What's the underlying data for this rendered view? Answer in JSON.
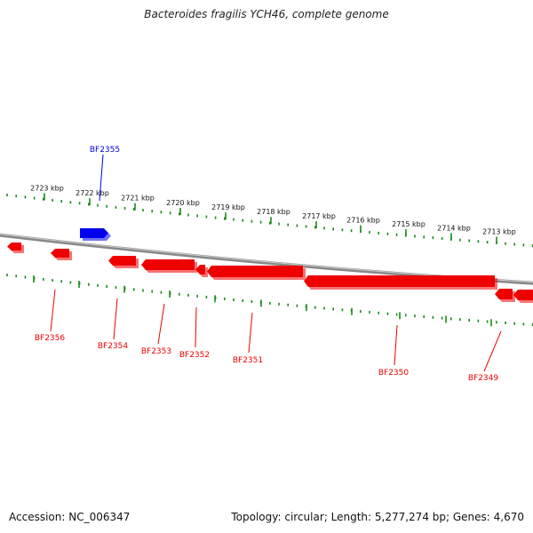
{
  "title": "Bacteroides fragilis YCH46, complete genome",
  "accession": "Accession: NC_006347",
  "summary": "Topology: circular; Length: 5,277,274 bp; Genes: 4,670",
  "colors": {
    "forward_gene": "#0000ee",
    "reverse_gene": "#ee0000",
    "ticks": "#1a8a1a",
    "backbone": "#888888"
  },
  "kbp_ticks": [
    {
      "label": "2723 kbp"
    },
    {
      "label": "2722 kbp"
    },
    {
      "label": "2721 kbp"
    },
    {
      "label": "2720 kbp"
    },
    {
      "label": "2719 kbp"
    },
    {
      "label": "2718 kbp"
    },
    {
      "label": "2717 kbp"
    },
    {
      "label": "2716 kbp"
    },
    {
      "label": "2715 kbp"
    },
    {
      "label": "2714 kbp"
    },
    {
      "label": "2713 kbp"
    }
  ],
  "genes": [
    {
      "name": "BF2355",
      "strand": "forward"
    },
    {
      "name": "BF2356",
      "strand": "reverse"
    },
    {
      "name": "BF2354",
      "strand": "reverse"
    },
    {
      "name": "BF2353",
      "strand": "reverse"
    },
    {
      "name": "BF2352",
      "strand": "reverse"
    },
    {
      "name": "BF2351",
      "strand": "reverse"
    },
    {
      "name": "BF2350",
      "strand": "reverse"
    },
    {
      "name": "BF2349",
      "strand": "reverse"
    }
  ]
}
